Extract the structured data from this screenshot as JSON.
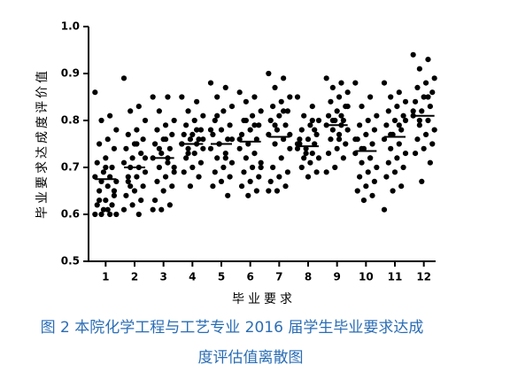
{
  "chart_data": {
    "type": "strip",
    "y_label": "毕业要求达成度评价值",
    "x_label": "毕业要求",
    "caption": [
      "图 2 本院化学工程与工艺专业 2016 届学生毕业要求达成",
      "度评估值离散图"
    ],
    "ylim": [
      0.5,
      1.0
    ],
    "yticks": [
      0.5,
      0.6,
      0.7,
      0.8,
      0.9,
      {
        "value": 1,
        "label": "1.0"
      }
    ],
    "color": "#000000",
    "groups": [
      {
        "category": "1",
        "mean": 0.675,
        "values": [
          0.86,
          0.81,
          0.8,
          0.78,
          0.76,
          0.75,
          0.74,
          0.72,
          0.71,
          0.7,
          0.69,
          0.68,
          0.68,
          0.67,
          0.67,
          0.66,
          0.65,
          0.64,
          0.63,
          0.62,
          0.62,
          0.61,
          0.6,
          0.6,
          0.6,
          0.6,
          0.61,
          0.63,
          0.65,
          0.7
        ]
      },
      {
        "category": "2",
        "mean": 0.7,
        "values": [
          0.89,
          0.83,
          0.82,
          0.8,
          0.78,
          0.77,
          0.76,
          0.75,
          0.74,
          0.73,
          0.72,
          0.71,
          0.7,
          0.7,
          0.69,
          0.68,
          0.67,
          0.66,
          0.65,
          0.64,
          0.63,
          0.62,
          0.61,
          0.6,
          0.66,
          0.72,
          0.75,
          0.68
        ]
      },
      {
        "category": "3",
        "mean": 0.72,
        "values": [
          0.85,
          0.85,
          0.82,
          0.8,
          0.79,
          0.78,
          0.77,
          0.76,
          0.75,
          0.74,
          0.73,
          0.72,
          0.71,
          0.7,
          0.69,
          0.68,
          0.67,
          0.66,
          0.65,
          0.63,
          0.62,
          0.61,
          0.61,
          0.72,
          0.74,
          0.7,
          0.76
        ]
      },
      {
        "category": "4",
        "mean": 0.75,
        "values": [
          0.85,
          0.84,
          0.82,
          0.81,
          0.8,
          0.79,
          0.78,
          0.77,
          0.77,
          0.76,
          0.76,
          0.75,
          0.75,
          0.74,
          0.74,
          0.73,
          0.72,
          0.71,
          0.7,
          0.69,
          0.68,
          0.66,
          0.75,
          0.78,
          0.73,
          0.76
        ]
      },
      {
        "category": "5",
        "mean": 0.75,
        "values": [
          0.88,
          0.87,
          0.85,
          0.83,
          0.82,
          0.8,
          0.79,
          0.78,
          0.77,
          0.76,
          0.75,
          0.74,
          0.73,
          0.72,
          0.71,
          0.7,
          0.69,
          0.68,
          0.67,
          0.66,
          0.64,
          0.75,
          0.78,
          0.72,
          0.81,
          0.76
        ]
      },
      {
        "category": "6",
        "mean": 0.755,
        "values": [
          0.86,
          0.85,
          0.84,
          0.82,
          0.81,
          0.8,
          0.79,
          0.78,
          0.77,
          0.76,
          0.75,
          0.74,
          0.73,
          0.72,
          0.71,
          0.7,
          0.69,
          0.68,
          0.67,
          0.66,
          0.65,
          0.64,
          0.76,
          0.79,
          0.8,
          0.7
        ]
      },
      {
        "category": "7",
        "mean": 0.765,
        "values": [
          0.9,
          0.89,
          0.87,
          0.85,
          0.84,
          0.83,
          0.82,
          0.81,
          0.8,
          0.79,
          0.78,
          0.77,
          0.76,
          0.75,
          0.74,
          0.72,
          0.7,
          0.69,
          0.68,
          0.67,
          0.66,
          0.65,
          0.65,
          0.82,
          0.79,
          0.77
        ]
      },
      {
        "category": "8",
        "mean": 0.745,
        "values": [
          0.85,
          0.83,
          0.81,
          0.8,
          0.79,
          0.78,
          0.77,
          0.76,
          0.75,
          0.75,
          0.74,
          0.74,
          0.73,
          0.72,
          0.72,
          0.71,
          0.7,
          0.69,
          0.68,
          0.76,
          0.78,
          0.73,
          0.75,
          0.8
        ]
      },
      {
        "category": "9",
        "mean": 0.79,
        "values": [
          0.89,
          0.88,
          0.87,
          0.86,
          0.85,
          0.84,
          0.83,
          0.82,
          0.81,
          0.8,
          0.8,
          0.79,
          0.79,
          0.78,
          0.78,
          0.77,
          0.76,
          0.75,
          0.74,
          0.73,
          0.72,
          0.7,
          0.69,
          0.81,
          0.8,
          0.83,
          0.76
        ]
      },
      {
        "category": "10",
        "mean": 0.735,
        "values": [
          0.88,
          0.85,
          0.83,
          0.81,
          0.8,
          0.79,
          0.78,
          0.77,
          0.76,
          0.75,
          0.74,
          0.73,
          0.72,
          0.71,
          0.7,
          0.69,
          0.68,
          0.67,
          0.66,
          0.65,
          0.64,
          0.63,
          0.76,
          0.72,
          0.74
        ]
      },
      {
        "category": "11",
        "mean": 0.765,
        "values": [
          0.88,
          0.86,
          0.85,
          0.84,
          0.83,
          0.82,
          0.81,
          0.8,
          0.79,
          0.78,
          0.77,
          0.76,
          0.75,
          0.74,
          0.73,
          0.72,
          0.71,
          0.7,
          0.69,
          0.68,
          0.66,
          0.65,
          0.61,
          0.79,
          0.77,
          0.8
        ]
      },
      {
        "category": "12",
        "mean": 0.81,
        "values": [
          0.94,
          0.93,
          0.91,
          0.89,
          0.88,
          0.87,
          0.86,
          0.85,
          0.84,
          0.83,
          0.82,
          0.81,
          0.8,
          0.79,
          0.78,
          0.77,
          0.76,
          0.75,
          0.74,
          0.73,
          0.71,
          0.67,
          0.82,
          0.85,
          0.8
        ]
      }
    ]
  }
}
